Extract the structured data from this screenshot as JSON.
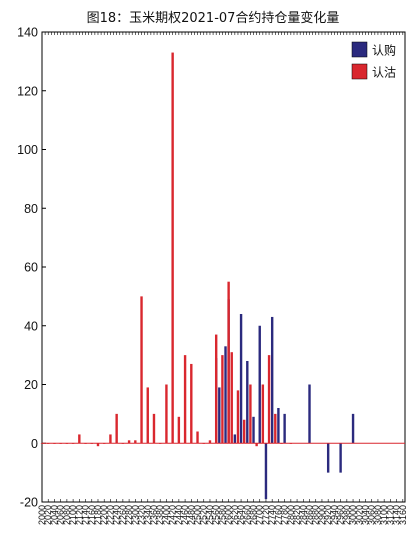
{
  "chart_data": {
    "type": "bar",
    "title": "图18：玉米期权2021-07合约持仓量变化量",
    "legend_position": "top-right",
    "grid": false,
    "ylim": [
      -20,
      140
    ],
    "yticks": [
      -20,
      0,
      20,
      40,
      60,
      80,
      100,
      120,
      140
    ],
    "xtick_labels": [
      "2000",
      "2020",
      "2040",
      "2060",
      "2080",
      "2100",
      "2120",
      "2140",
      "2160",
      "2180",
      "2200",
      "2220",
      "2240",
      "2260",
      "2280",
      "2300",
      "2320",
      "2340",
      "2360",
      "2380",
      "2400",
      "2420",
      "2440",
      "2460",
      "2480",
      "2500",
      "2520",
      "2540",
      "2560",
      "2580",
      "2600",
      "2620",
      "2640",
      "2660",
      "2680",
      "2700",
      "2720",
      "2740",
      "2760",
      "2780",
      "2800",
      "2820",
      "2840",
      "2860",
      "2880",
      "2900",
      "2920",
      "2940",
      "2960",
      "2980",
      "3000",
      "3020",
      "3040",
      "3060",
      "3080",
      "3100",
      "3120",
      "3140",
      "3160"
    ],
    "series": [
      {
        "name": "认购",
        "color": "#2b2a7e",
        "points": [
          {
            "x": 2560,
            "y": 29
          },
          {
            "x": 2570,
            "y": 19
          },
          {
            "x": 2590,
            "y": 33
          },
          {
            "x": 2600,
            "y": 49
          },
          {
            "x": 2620,
            "y": 3
          },
          {
            "x": 2640,
            "y": 44
          },
          {
            "x": 2660,
            "y": 28
          },
          {
            "x": 2680,
            "y": 9
          },
          {
            "x": 2700,
            "y": 40
          },
          {
            "x": 2720,
            "y": -19
          },
          {
            "x": 2740,
            "y": 43
          },
          {
            "x": 2760,
            "y": 12
          },
          {
            "x": 2780,
            "y": 10
          },
          {
            "x": 2860,
            "y": 20
          },
          {
            "x": 2920,
            "y": -10
          },
          {
            "x": 2960,
            "y": -10
          },
          {
            "x": 3000,
            "y": 10
          }
        ]
      },
      {
        "name": "认沽",
        "color": "#d9272e",
        "points": [
          {
            "x": 2000,
            "y": 0
          },
          {
            "x": 2020,
            "y": 0
          },
          {
            "x": 2040,
            "y": 0
          },
          {
            "x": 2060,
            "y": 0
          },
          {
            "x": 2080,
            "y": 0
          },
          {
            "x": 2100,
            "y": 0
          },
          {
            "x": 2120,
            "y": 3
          },
          {
            "x": 2140,
            "y": 0
          },
          {
            "x": 2160,
            "y": 0
          },
          {
            "x": 2180,
            "y": -1
          },
          {
            "x": 2200,
            "y": 0
          },
          {
            "x": 2220,
            "y": 3
          },
          {
            "x": 2240,
            "y": 10
          },
          {
            "x": 2260,
            "y": 0
          },
          {
            "x": 2280,
            "y": 1
          },
          {
            "x": 2300,
            "y": 1
          },
          {
            "x": 2320,
            "y": 50
          },
          {
            "x": 2340,
            "y": 19
          },
          {
            "x": 2360,
            "y": 10
          },
          {
            "x": 2380,
            "y": 0
          },
          {
            "x": 2400,
            "y": 20
          },
          {
            "x": 2420,
            "y": 133
          },
          {
            "x": 2440,
            "y": 9
          },
          {
            "x": 2460,
            "y": 30
          },
          {
            "x": 2480,
            "y": 27
          },
          {
            "x": 2500,
            "y": 4
          },
          {
            "x": 2520,
            "y": 0
          },
          {
            "x": 2540,
            "y": 1
          },
          {
            "x": 2560,
            "y": 37
          },
          {
            "x": 2580,
            "y": 30
          },
          {
            "x": 2600,
            "y": 55
          },
          {
            "x": 2610,
            "y": 31
          },
          {
            "x": 2630,
            "y": 18
          },
          {
            "x": 2650,
            "y": 8
          },
          {
            "x": 2670,
            "y": 20
          },
          {
            "x": 2690,
            "y": -1
          },
          {
            "x": 2710,
            "y": 20
          },
          {
            "x": 2730,
            "y": 30
          },
          {
            "x": 2750,
            "y": 10
          },
          {
            "x": 2770,
            "y": 0
          },
          {
            "x": 2800,
            "y": 0
          }
        ]
      }
    ]
  }
}
